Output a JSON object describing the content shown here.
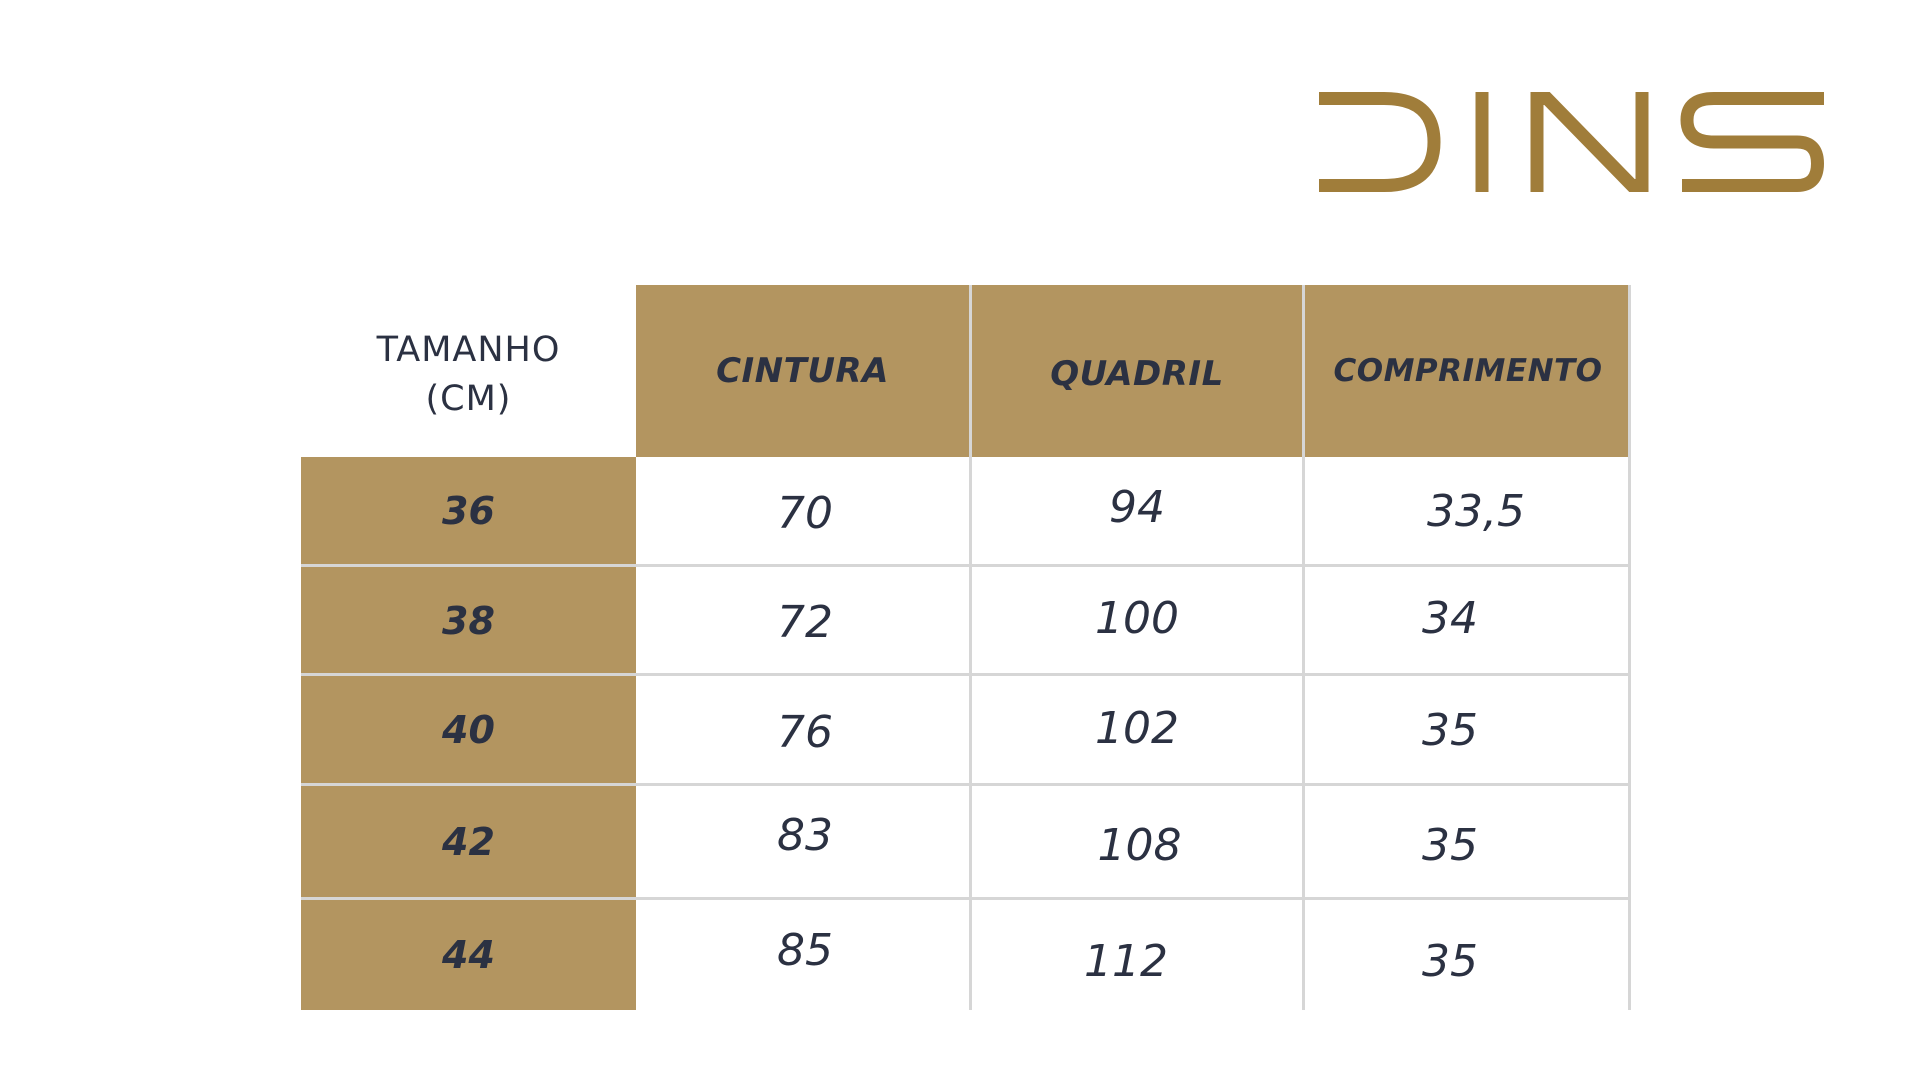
{
  "brand": {
    "logo_text": "DINS",
    "color": "#a07d3a"
  },
  "table": {
    "corner_label": "TAMANHO\n(CM)",
    "headers": [
      "CINTURA",
      "QUADRIL",
      "COMPRIMENTO"
    ],
    "rows": [
      {
        "size": "36",
        "values": [
          "70",
          "94",
          "33,5"
        ]
      },
      {
        "size": "38",
        "values": [
          "72",
          "100",
          "34"
        ]
      },
      {
        "size": "40",
        "values": [
          "76",
          "102",
          "35"
        ]
      },
      {
        "size": "42",
        "values": [
          "83",
          "108",
          "35"
        ]
      },
      {
        "size": "44",
        "values": [
          "85",
          "112",
          "35"
        ]
      }
    ],
    "colors": {
      "header_fill": "#b39560",
      "text": "#2b3142",
      "grid": "#d6d6d6"
    }
  }
}
